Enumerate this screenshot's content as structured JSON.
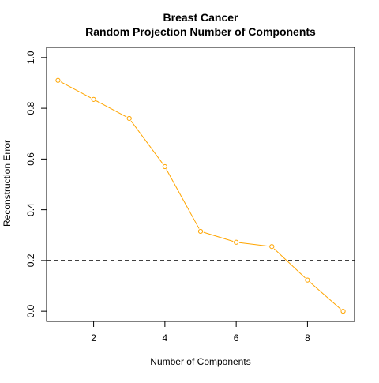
{
  "chart_data": {
    "type": "line",
    "title": "Breast Cancer",
    "subtitle": "Random Projection Number of Components",
    "xlabel": "Number of Components",
    "ylabel": "Reconstruction Error",
    "xlim": [
      0.68,
      9.32
    ],
    "ylim": [
      -0.04,
      1.04
    ],
    "x_ticks": [
      2,
      4,
      6,
      8
    ],
    "x_tick_labels": [
      "2",
      "4",
      "6",
      "8"
    ],
    "y_ticks": [
      0.0,
      0.2,
      0.4,
      0.6,
      0.8,
      1.0
    ],
    "y_tick_labels": [
      "0.0",
      "0.2",
      "0.4",
      "0.6",
      "0.8",
      "1.0"
    ],
    "grid": false,
    "series": [
      {
        "x": [
          1,
          2,
          3,
          4,
          5,
          6,
          7,
          8,
          9
        ],
        "values": [
          0.91,
          0.835,
          0.76,
          0.57,
          0.315,
          0.272,
          0.255,
          0.123,
          0.0
        ],
        "color": "#FFA500",
        "marker": "open-circle"
      }
    ],
    "reference_line": {
      "y": 0.2,
      "style": "dashed",
      "color": "#000000"
    }
  }
}
